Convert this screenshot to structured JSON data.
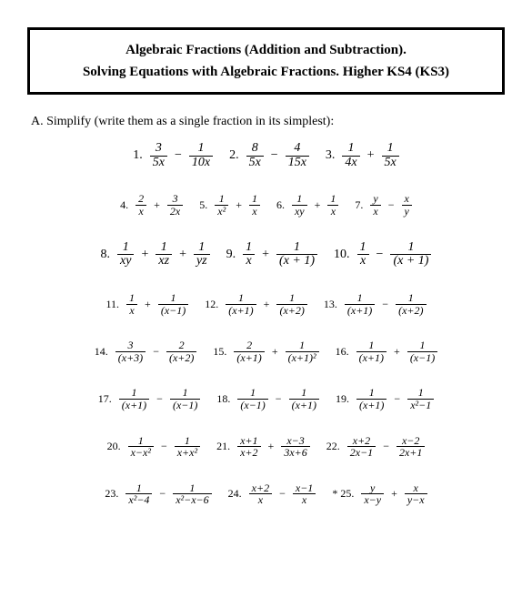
{
  "colors": {
    "text": "#000000",
    "border": "#000000",
    "background": "#ffffff"
  },
  "title": {
    "line1": "Algebraic Fractions (Addition and Subtraction).",
    "line2": "Solving Equations with Algebraic Fractions.  Higher KS4 (KS3)"
  },
  "section_label": "A. Simplify (write them as a single fraction in its simplest):",
  "problems": [
    {
      "n": "1.",
      "parts": [
        {
          "t": "3",
          "b": "5x"
        },
        "−",
        {
          "t": "1",
          "b": "10x"
        }
      ]
    },
    {
      "n": "2.",
      "parts": [
        {
          "t": "8",
          "b": "5x"
        },
        "−",
        {
          "t": "4",
          "b": "15x"
        }
      ]
    },
    {
      "n": "3.",
      "parts": [
        {
          "t": "1",
          "b": "4x"
        },
        "+",
        {
          "t": "1",
          "b": "5x"
        }
      ]
    },
    {
      "n": "4.",
      "parts": [
        {
          "t": "2",
          "b": "x"
        },
        "+",
        {
          "t": "3",
          "b": "2x"
        }
      ]
    },
    {
      "n": "5.",
      "parts": [
        {
          "t": "1",
          "b": "x²"
        },
        "+",
        {
          "t": "1",
          "b": "x"
        }
      ]
    },
    {
      "n": "6.",
      "parts": [
        {
          "t": "1",
          "b": "xy"
        },
        "+",
        {
          "t": "1",
          "b": "x"
        }
      ]
    },
    {
      "n": "7.",
      "parts": [
        {
          "t": "y",
          "b": "x"
        },
        "−",
        {
          "t": "x",
          "b": "y"
        }
      ]
    },
    {
      "n": "8.",
      "parts": [
        {
          "t": "1",
          "b": "xy"
        },
        "+",
        {
          "t": "1",
          "b": "xz"
        },
        "+",
        {
          "t": "1",
          "b": "yz"
        }
      ]
    },
    {
      "n": "9.",
      "parts": [
        {
          "t": "1",
          "b": "x"
        },
        "+",
        {
          "t": "1",
          "b": "(x + 1)"
        }
      ]
    },
    {
      "n": "10.",
      "parts": [
        {
          "t": "1",
          "b": "x"
        },
        "−",
        {
          "t": "1",
          "b": "(x + 1)"
        }
      ]
    },
    {
      "n": "11.",
      "parts": [
        {
          "t": "1",
          "b": "x"
        },
        "+",
        {
          "t": "1",
          "b": "(x−1)"
        }
      ]
    },
    {
      "n": "12.",
      "parts": [
        {
          "t": "1",
          "b": "(x+1)"
        },
        "+",
        {
          "t": "1",
          "b": "(x+2)"
        }
      ]
    },
    {
      "n": "13.",
      "parts": [
        {
          "t": "1",
          "b": "(x+1)"
        },
        "−",
        {
          "t": "1",
          "b": "(x+2)"
        }
      ]
    },
    {
      "n": "14.",
      "parts": [
        {
          "t": "3",
          "b": "(x+3)"
        },
        "−",
        {
          "t": "2",
          "b": "(x+2)"
        }
      ]
    },
    {
      "n": "15.",
      "parts": [
        {
          "t": "2",
          "b": "(x+1)"
        },
        "+",
        {
          "t": "1",
          "b": "(x+1)²"
        }
      ]
    },
    {
      "n": "16.",
      "parts": [
        {
          "t": "1",
          "b": "(x+1)"
        },
        "+",
        {
          "t": "1",
          "b": "(x−1)"
        }
      ]
    },
    {
      "n": "17.",
      "parts": [
        {
          "t": "1",
          "b": "(x+1)"
        },
        "−",
        {
          "t": "1",
          "b": "(x−1)"
        }
      ]
    },
    {
      "n": "18.",
      "parts": [
        {
          "t": "1",
          "b": "(x−1)"
        },
        "−",
        {
          "t": "1",
          "b": "(x+1)"
        }
      ]
    },
    {
      "n": "19.",
      "parts": [
        {
          "t": "1",
          "b": "(x+1)"
        },
        "−",
        {
          "t": "1",
          "b": "x²−1"
        }
      ]
    },
    {
      "n": "20.",
      "parts": [
        {
          "t": "1",
          "b": "x−x²"
        },
        "−",
        {
          "t": "1",
          "b": "x+x²"
        }
      ]
    },
    {
      "n": "21.",
      "parts": [
        {
          "t": "x+1",
          "b": "x+2"
        },
        "+",
        {
          "t": "x−3",
          "b": "3x+6"
        }
      ]
    },
    {
      "n": "22.",
      "parts": [
        {
          "t": "x+2",
          "b": "2x−1"
        },
        "−",
        {
          "t": "x−2",
          "b": "2x+1"
        }
      ]
    },
    {
      "n": "23.",
      "parts": [
        {
          "t": "1",
          "b": "x²−4"
        },
        "−",
        {
          "t": "1",
          "b": "x²−x−6"
        }
      ]
    },
    {
      "n": "24.",
      "parts": [
        {
          "t": "x+2",
          "b": "x"
        },
        "−",
        {
          "t": "x−1",
          "b": "x"
        }
      ]
    },
    {
      "n": "* 25.",
      "parts": [
        {
          "t": "y",
          "b": "x−y"
        },
        "+",
        {
          "t": "x",
          "b": "y−x"
        }
      ]
    }
  ],
  "layout": {
    "rows": [
      {
        "indices": [
          0,
          1,
          2
        ],
        "size": "med"
      },
      {
        "indices": [
          3,
          4,
          5,
          6
        ],
        "size": "small"
      },
      {
        "indices": [
          7,
          8,
          9
        ],
        "size": "med"
      },
      {
        "indices": [
          10,
          11,
          12
        ],
        "size": "small"
      },
      {
        "indices": [
          13,
          14,
          15
        ],
        "size": "small"
      },
      {
        "indices": [
          16,
          17,
          18
        ],
        "size": "small"
      },
      {
        "indices": [
          19,
          20,
          21
        ],
        "size": "small"
      },
      {
        "indices": [
          22,
          23,
          24
        ],
        "size": "small"
      }
    ]
  }
}
